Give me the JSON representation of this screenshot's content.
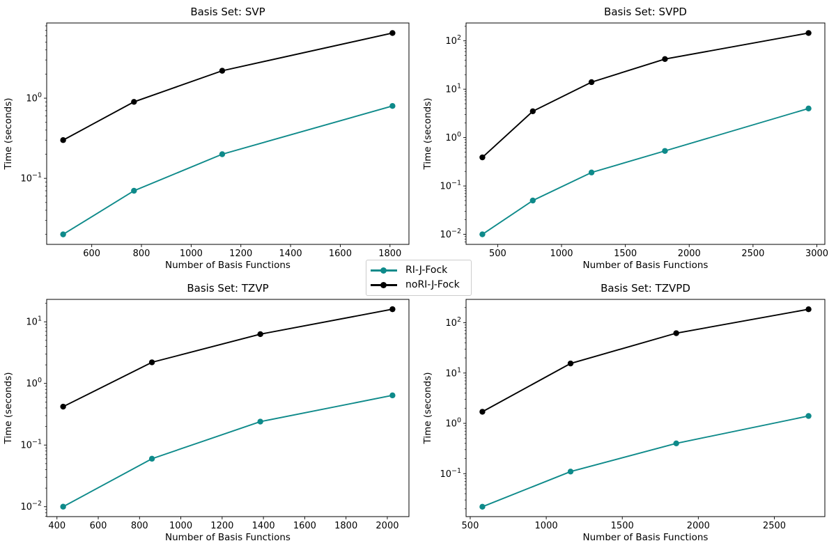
{
  "figure": {
    "background": "#ffffff",
    "accent_teal": "#0e8a8a",
    "series_black": "#000000",
    "legend_border": "#cccccc"
  },
  "legend": {
    "position": "figure-center-between-rows",
    "items": [
      {
        "label": "RI-J-Fock",
        "color": "#0e8a8a"
      },
      {
        "label": "noRI-J-Fock",
        "color": "#000000"
      }
    ]
  },
  "chart_data": [
    {
      "type": "line",
      "title": "Basis Set: SVP",
      "xlabel": "Number of Basis Functions",
      "ylabel": "Time (seconds)",
      "yscale": "log",
      "grid": false,
      "x": [
        485,
        770,
        1125,
        1810
      ],
      "series": [
        {
          "name": "RI-J-Fock",
          "color": "#0e8a8a",
          "values": [
            0.02,
            0.07,
            0.2,
            0.8
          ]
        },
        {
          "name": "noRI-J-Fock",
          "color": "#000000",
          "values": [
            0.3,
            0.9,
            2.2,
            6.5
          ]
        }
      ],
      "xticks": [
        600,
        800,
        1000,
        1200,
        1400,
        1600,
        1800
      ],
      "ytick_labels": [
        "10^-1",
        "10^0"
      ],
      "xlim": [
        418.75,
        1876.25
      ],
      "ylim": [
        0.015,
        8.68
      ]
    },
    {
      "type": "line",
      "title": "Basis Set: SVPD",
      "xlabel": "Number of Basis Functions",
      "ylabel": "Time (seconds)",
      "yscale": "log",
      "grid": false,
      "x": [
        380,
        775,
        1235,
        1810,
        2935
      ],
      "series": [
        {
          "name": "RI-J-Fock",
          "color": "#0e8a8a",
          "values": [
            0.01,
            0.05,
            0.19,
            0.53,
            4.0
          ]
        },
        {
          "name": "noRI-J-Fock",
          "color": "#000000",
          "values": [
            0.39,
            3.5,
            14,
            42,
            145
          ]
        }
      ],
      "xticks": [
        500,
        1000,
        1500,
        2000,
        2500,
        3000
      ],
      "ytick_labels": [
        "10^-2",
        "10^-1",
        "10^0",
        "10^1",
        "10^2"
      ],
      "xlim": [
        252.25,
        3062.75
      ],
      "ylim": [
        0.0062,
        234
      ]
    },
    {
      "type": "line",
      "title": "Basis Set: TZVP",
      "xlabel": "Number of Basis Functions",
      "ylabel": "Time (seconds)",
      "yscale": "log",
      "grid": false,
      "x": [
        430,
        860,
        1385,
        2025
      ],
      "series": [
        {
          "name": "RI-J-Fock",
          "color": "#0e8a8a",
          "values": [
            0.01,
            0.06,
            0.24,
            0.64
          ]
        },
        {
          "name": "noRI-J-Fock",
          "color": "#000000",
          "values": [
            0.42,
            2.2,
            6.3,
            16
          ]
        }
      ],
      "xticks": [
        400,
        600,
        800,
        1000,
        1200,
        1400,
        1600,
        1800,
        2000
      ],
      "ytick_labels": [
        "10^-2",
        "10^-1",
        "10^0",
        "10^1"
      ],
      "xlim": [
        350.25,
        2104.75
      ],
      "ylim": [
        0.0069,
        23.1
      ]
    },
    {
      "type": "line",
      "title": "Basis Set: TZVPD",
      "xlabel": "Number of Basis Functions",
      "ylabel": "Time (seconds)",
      "yscale": "log",
      "grid": false,
      "x": [
        580,
        1160,
        1855,
        2725
      ],
      "series": [
        {
          "name": "RI-J-Fock",
          "color": "#0e8a8a",
          "values": [
            0.022,
            0.11,
            0.4,
            1.4
          ]
        },
        {
          "name": "noRI-J-Fock",
          "color": "#000000",
          "values": [
            1.7,
            15.5,
            62,
            185
          ]
        }
      ],
      "xticks": [
        500,
        1000,
        1500,
        2000,
        2500
      ],
      "ytick_labels": [
        "10^-1",
        "10^0",
        "10^1",
        "10^2"
      ],
      "xlim": [
        472.75,
        2832.25
      ],
      "ylim": [
        0.014,
        291
      ]
    }
  ]
}
